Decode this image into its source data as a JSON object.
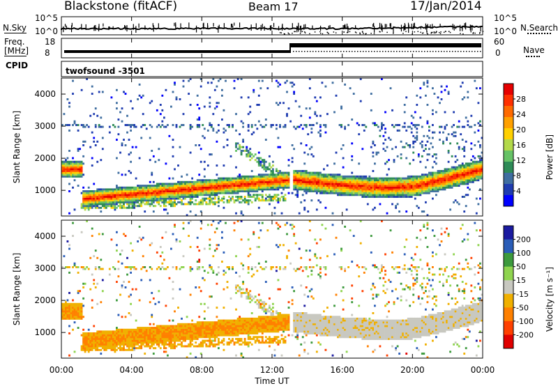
{
  "header": {
    "station": "Blackstone (fitACF)",
    "beam": "Beam 17",
    "date": "17/Jan/2014"
  },
  "top_panels": {
    "nsky_label": "N.Sky",
    "nsearch_label": "N.Search",
    "nsky_ticks": [
      "10^5",
      "10^0"
    ],
    "nsearch_ticks": [
      "10^5",
      "10^0"
    ],
    "freq_label_1": "Freq.",
    "freq_label_2": "[MHz]",
    "freq_ticks": [
      "18",
      "8"
    ],
    "nave_label": "Nave",
    "nave_ticks": [
      "60",
      "0"
    ],
    "cpid_label": "CPID",
    "cpid_text": "twofsound  -3501"
  },
  "colors": {
    "power": [
      "#0000ff",
      "#1f3cb0",
      "#3f6ea0",
      "#2e8b57",
      "#66c266",
      "#b3d94a",
      "#ffd000",
      "#ffa000",
      "#ff6a00",
      "#ff3000",
      "#e60000"
    ],
    "velocity": [
      "#1a1aa0",
      "#2a5db8",
      "#3d9a3d",
      "#8fd44f",
      "#c8c8c0",
      "#f0b000",
      "#ff8000",
      "#ff4000",
      "#e00000"
    ]
  },
  "chart_data": [
    {
      "type": "heatmap",
      "name": "power",
      "ylabel": "Slant Range [km]",
      "ylim": [
        200,
        4500
      ],
      "yticks": [
        "4000",
        "3000",
        "2000",
        "1000"
      ],
      "colorbar_label": "Power [dB]",
      "colorbar_ticks": [
        "28",
        "24",
        "20",
        "16",
        "12",
        "8",
        "4"
      ],
      "colorbar_range": [
        0,
        32
      ]
    },
    {
      "type": "heatmap",
      "name": "velocity",
      "ylabel": "Slant Range [km]",
      "ylim": [
        200,
        4500
      ],
      "yticks": [
        "4000",
        "3000",
        "2000",
        "1000"
      ],
      "colorbar_label": "Velocity [m s⁻¹]",
      "colorbar_ticks": [
        "200",
        "100",
        "50",
        "15",
        "-15",
        "-50",
        "-100",
        "-200"
      ],
      "colorbar_range": [
        -250,
        250
      ]
    }
  ],
  "xaxis": {
    "ticks": [
      "00:00",
      "04:00",
      "08:00",
      "12:00",
      "16:00",
      "20:00",
      "00:00"
    ],
    "label": "Time UT"
  }
}
